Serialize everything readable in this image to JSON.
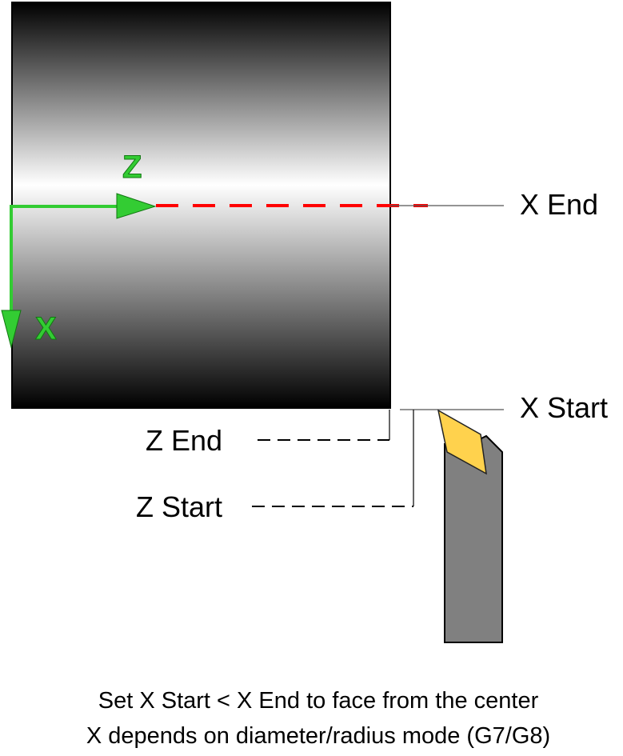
{
  "labels": {
    "z_axis": "Z",
    "x_axis": "X",
    "x_end": "X End",
    "x_start": "X Start",
    "z_end": "Z End",
    "z_start": "Z Start"
  },
  "caption": {
    "line1": "Set X Start < X End to face from the center",
    "line2": "X depends on diameter/radius mode (G7/G8)"
  },
  "colors": {
    "axis_arrow": "#33cc33",
    "path_line": "#ff0000",
    "tool_body": "#808080",
    "tool_insert": "#ffd24d",
    "workpiece_dark": "#000000",
    "workpiece_light": "#ffffff"
  }
}
